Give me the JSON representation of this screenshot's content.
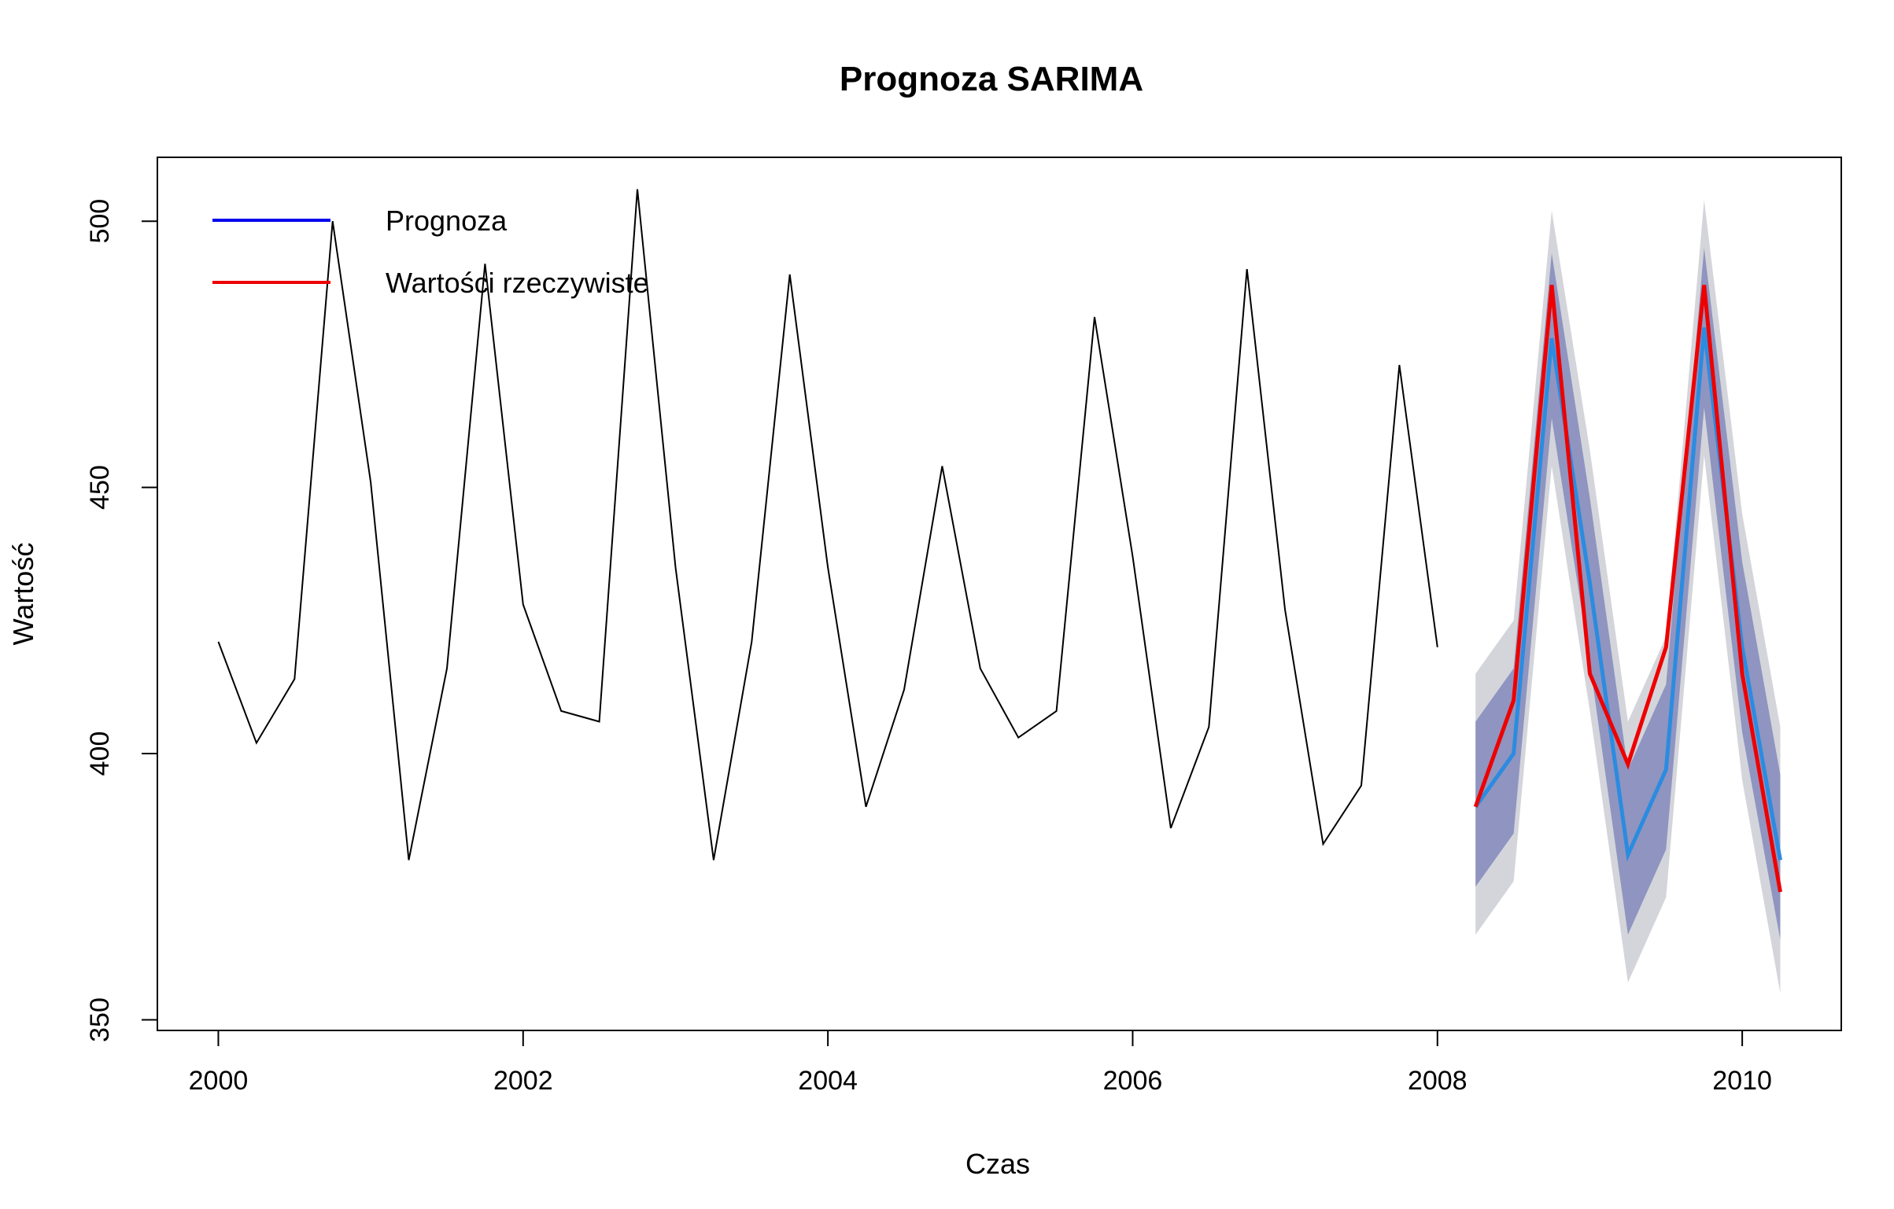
{
  "chart_data": {
    "type": "line",
    "title": "Prognoza SARIMA",
    "xlabel": "Czas",
    "ylabel": "Wartość",
    "xlim": [
      1999.6,
      2010.65
    ],
    "ylim": [
      348,
      512
    ],
    "x_ticks": [
      2000,
      2002,
      2004,
      2006,
      2008,
      2010
    ],
    "y_ticks": [
      350,
      400,
      450,
      500
    ],
    "x_tick_labels": [
      "2000",
      "2002",
      "2004",
      "2006",
      "2008",
      "2010"
    ],
    "y_tick_labels": [
      "350",
      "400",
      "450",
      "500"
    ],
    "grid": false,
    "legend": {
      "position": "top-left",
      "entries": [
        {
          "label": "Prognoza",
          "color": "#0000ee"
        },
        {
          "label": "Wartości rzeczywiste",
          "color": "#ee0000"
        }
      ]
    },
    "history": {
      "color": "#000000",
      "x": [
        2000.0,
        2000.25,
        2000.5,
        2000.75,
        2001.0,
        2001.25,
        2001.5,
        2001.75,
        2002.0,
        2002.25,
        2002.5,
        2002.75,
        2003.0,
        2003.25,
        2003.5,
        2003.75,
        2004.0,
        2004.25,
        2004.5,
        2004.75,
        2005.0,
        2005.25,
        2005.5,
        2005.75,
        2006.0,
        2006.25,
        2006.5,
        2006.75,
        2007.0,
        2007.25,
        2007.5,
        2007.75,
        2008.0
      ],
      "y": [
        421,
        402,
        414,
        500,
        451,
        380,
        416,
        492,
        428,
        408,
        406,
        506,
        435,
        380,
        421,
        490,
        435,
        390,
        412,
        454,
        416,
        403,
        408,
        482,
        437,
        386,
        405,
        491,
        427,
        383,
        394,
        473,
        420
      ]
    },
    "forecast": {
      "color": "#2b8be0",
      "x": [
        2008.25,
        2008.5,
        2008.75,
        2009.0,
        2009.25,
        2009.5,
        2009.75,
        2010.0,
        2010.25
      ],
      "y": [
        390,
        400,
        478,
        432,
        381,
        397,
        480,
        420,
        380
      ]
    },
    "ci80": {
      "color": "#8f95c0",
      "lower": [
        375,
        385,
        463,
        417,
        366,
        382,
        465,
        404,
        365
      ],
      "upper": [
        406,
        416,
        494,
        448,
        397,
        413,
        495,
        436,
        396
      ]
    },
    "ci95": {
      "color": "#d4d5db",
      "lower": [
        366,
        376,
        454,
        408,
        357,
        373,
        456,
        395,
        355
      ],
      "upper": [
        415,
        425,
        502,
        457,
        406,
        422,
        504,
        445,
        405
      ]
    },
    "actual": {
      "color": "#ee0000",
      "x": [
        2008.25,
        2008.5,
        2008.75,
        2009.0,
        2009.25,
        2009.5,
        2009.75,
        2010.0,
        2010.25
      ],
      "y": [
        390,
        410,
        488,
        415,
        398,
        420,
        488,
        415,
        374
      ]
    }
  }
}
